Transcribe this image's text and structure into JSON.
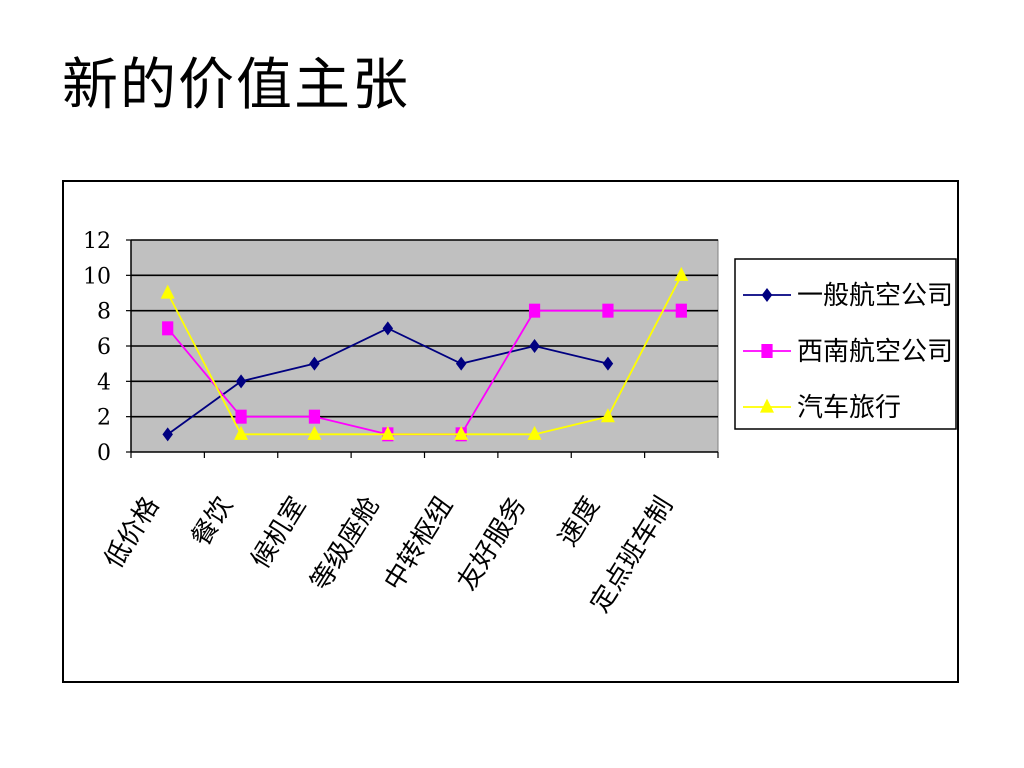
{
  "slide": {
    "title": "新的价值主张"
  },
  "chart_data": {
    "type": "line",
    "categories": [
      "低价格",
      "餐饮",
      "候机室",
      "等级座舱",
      "中转枢纽",
      "友好服务",
      "速度",
      "定点班车制"
    ],
    "series": [
      {
        "name": "一般航空公司",
        "color": "#000080",
        "marker": "diamond",
        "values": [
          1,
          4,
          5,
          7,
          5,
          6,
          5,
          null
        ]
      },
      {
        "name": "西南航空公司",
        "color": "#FF00FF",
        "marker": "square",
        "values": [
          7,
          2,
          2,
          1,
          1,
          8,
          8,
          8
        ]
      },
      {
        "name": "汽车旅行",
        "color": "#FFFF00",
        "marker": "triangle",
        "values": [
          9,
          1,
          1,
          1,
          1,
          1,
          2,
          10
        ]
      }
    ],
    "ylim": [
      0,
      12
    ],
    "yticks": [
      "0",
      "2",
      "4",
      "6",
      "8",
      "10",
      "12"
    ],
    "grid": true,
    "plot_background": "#C0C0C0",
    "legend_position": "right"
  }
}
